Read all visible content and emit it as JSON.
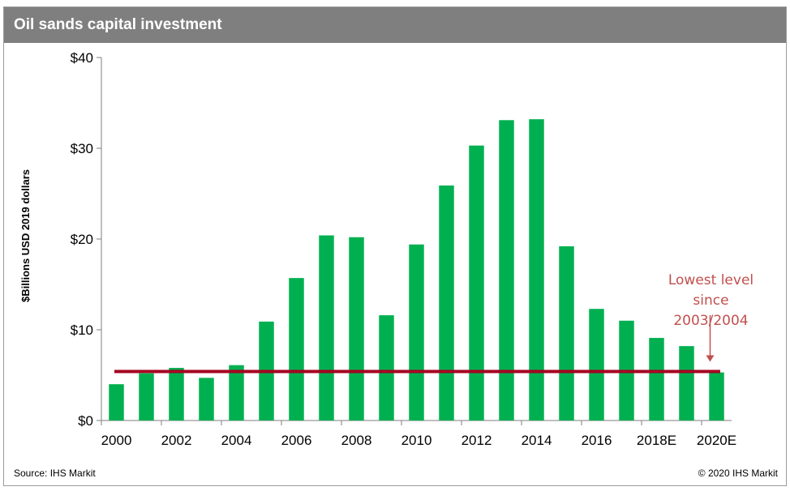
{
  "header": {
    "title": "Oil sands capital investment"
  },
  "footer": {
    "source": "Source: IHS Markit",
    "copyright": "© 2020 IHS Markit"
  },
  "colors": {
    "bar": "#00b050",
    "reference_line": "#a50021",
    "annotation": "#c0504d",
    "header_bg": "#7f7f7f"
  },
  "chart_data": {
    "type": "bar",
    "title": "Oil sands capital investment",
    "ylabel": "$Billions  USD 2019 dollars",
    "xlabel": "",
    "ylim": [
      0,
      40
    ],
    "yticks": [
      0,
      10,
      20,
      30,
      40
    ],
    "ytick_labels": [
      "$0",
      "$10",
      "$20",
      "$30",
      "$40"
    ],
    "categories": [
      "2000",
      "2001",
      "2002",
      "2003",
      "2004",
      "2005",
      "2006",
      "2007",
      "2008",
      "2009",
      "2010",
      "2011",
      "2012",
      "2013",
      "2014",
      "2015",
      "2016",
      "2017",
      "2018E",
      "2019E",
      "2020E"
    ],
    "xtick_labels": [
      "2000",
      "",
      "2002",
      "",
      "2004",
      "",
      "2006",
      "",
      "2008",
      "",
      "2010",
      "",
      "2012",
      "",
      "2014",
      "",
      "2016",
      "",
      "2018E",
      "",
      "2020E"
    ],
    "values": [
      4.0,
      5.2,
      5.8,
      4.7,
      6.1,
      10.9,
      15.7,
      20.4,
      20.2,
      11.6,
      19.4,
      25.9,
      30.3,
      33.1,
      33.2,
      19.2,
      12.3,
      11.0,
      9.1,
      8.2,
      5.3
    ],
    "reference_line": {
      "value": 5.4
    },
    "annotation": {
      "lines": [
        "Lowest level",
        "since",
        "2003/2004"
      ],
      "category": "2020E"
    },
    "grid": false
  }
}
